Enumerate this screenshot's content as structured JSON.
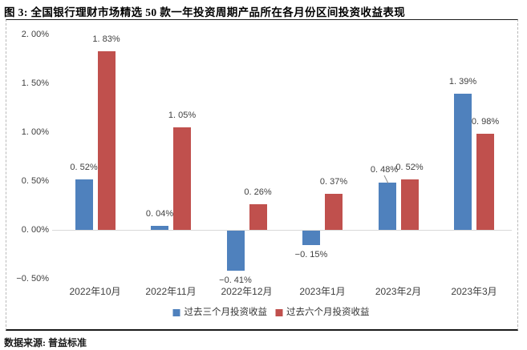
{
  "page": {
    "title": "图 3: 全国银行理财市场精选 50 款一年投资周期产品所在各月份区间投资收益表现",
    "source": "数据来源: 普益标准"
  },
  "colors": {
    "series_blue": "#4F81BD",
    "series_red": "#C0504D",
    "zero_line": "#D9D9D9",
    "axis_text": "#404040",
    "box_border": "#1A1A1A",
    "dashed_border": "#B8B8B8",
    "leader_line": "#8C8C8C"
  },
  "chart_data": {
    "type": "bar",
    "title": "",
    "xlabel": "",
    "ylabel": "",
    "categories": [
      "2022年10月",
      "2022年11月",
      "2022年12月",
      "2023年1月",
      "2023年2月",
      "2023年3月"
    ],
    "series": [
      {
        "name": "过去三个月投资收益",
        "key": "past-3m",
        "color": "#4F81BD",
        "values": [
          0.52,
          0.04,
          -0.41,
          -0.15,
          0.48,
          1.39
        ],
        "labels": [
          "0. 52%",
          "0. 04%",
          "−0. 41%",
          "−0. 15%",
          "0. 48%",
          "1. 39%"
        ]
      },
      {
        "name": "过去六个月投资收益",
        "key": "past-6m",
        "color": "#C0504D",
        "values": [
          1.83,
          1.05,
          0.26,
          0.37,
          0.52,
          0.98
        ],
        "labels": [
          "1. 83%",
          "1. 05%",
          "0. 26%",
          "0. 37%",
          "0. 52%",
          "0. 98%"
        ]
      }
    ],
    "y_ticks": [
      {
        "value": 2.0,
        "label": "2. 00%"
      },
      {
        "value": 1.5,
        "label": "1. 50%"
      },
      {
        "value": 1.0,
        "label": "1. 00%"
      },
      {
        "value": 0.5,
        "label": "0. 50%"
      },
      {
        "value": 0.0,
        "label": "0. 00%"
      },
      {
        "value": -0.5,
        "label": "−0. 50%"
      }
    ],
    "ylim": [
      -0.5,
      2.0
    ],
    "grid": false,
    "legend_position": "bottom",
    "callout": {
      "series_index": 0,
      "point_index": 4,
      "has_leader_line": true,
      "note": "0.48% label nudged up-left with leader line to bar"
    }
  }
}
